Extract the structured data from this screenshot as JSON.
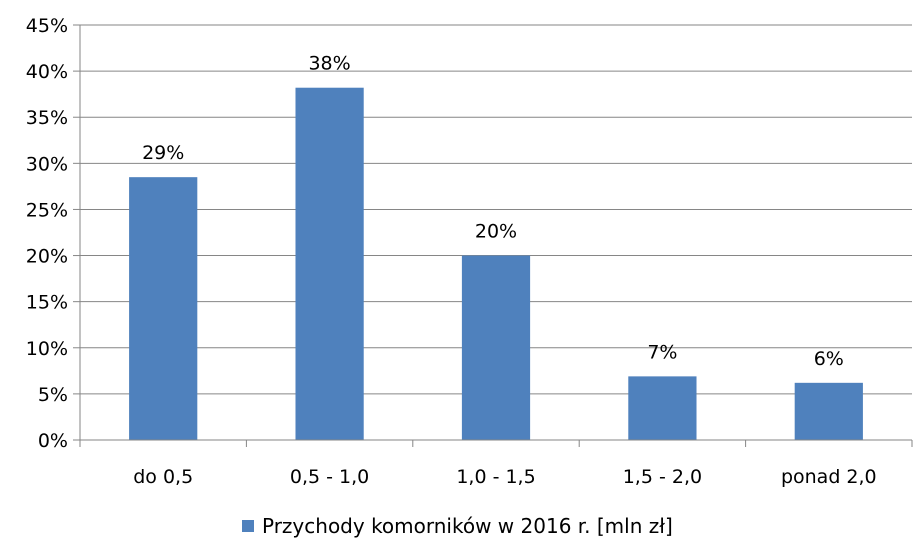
{
  "chart_data": {
    "type": "bar",
    "categories": [
      "do 0,5",
      "0,5 - 1,0",
      "1,0 - 1,5",
      "1,5 - 2,0",
      "ponad 2,0"
    ],
    "series": [
      {
        "name": "Przychody komorników w 2016 r. [mln zł]",
        "values": [
          28.5,
          38.2,
          20.0,
          6.9,
          6.2
        ],
        "data_labels": [
          "29%",
          "38%",
          "20%",
          "7%",
          "6%"
        ]
      }
    ],
    "ylim": [
      0,
      45
    ],
    "yticks": [
      "0%",
      "5%",
      "10%",
      "15%",
      "20%",
      "25%",
      "30%",
      "35%",
      "40%",
      "45%"
    ],
    "grid": true,
    "legend_position": "bottom",
    "colors": {
      "bar": "#4F81BD",
      "grid": "#868686",
      "axis": "#868686"
    }
  }
}
